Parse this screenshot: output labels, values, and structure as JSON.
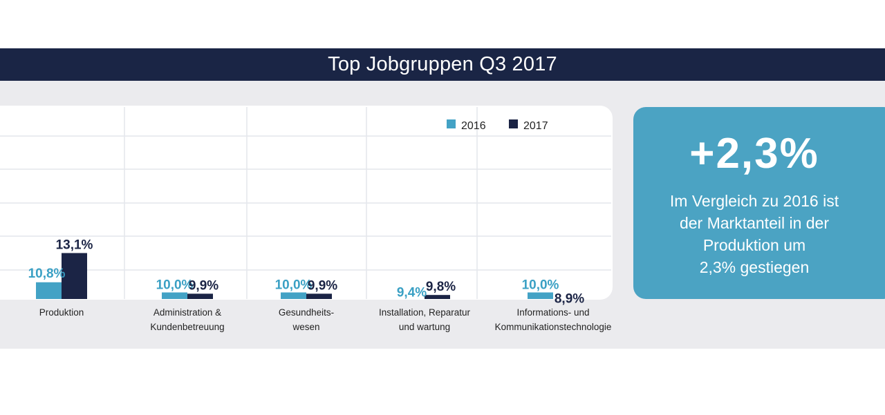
{
  "title": "Top Jobgruppen Q3 2017",
  "colors": {
    "2016": "#43a2c5",
    "2017": "#1b2445",
    "label_2016": "#3aa0c4",
    "label_2017": "#1b2445",
    "header": "#1a2545",
    "highlight": "#4ba3c3"
  },
  "chart_data": {
    "type": "bar",
    "categories": [
      [
        "Produktion"
      ],
      [
        "Administration &",
        "Kundenbetreuung"
      ],
      [
        "Gesundheits-",
        "wesen"
      ],
      [
        "Installation, Reparatur",
        "und wartung"
      ],
      [
        "Informations- und",
        "Kommunikationstechnologie"
      ]
    ],
    "series": [
      {
        "name": "2016",
        "values": [
          10.8,
          10.0,
          10.0,
          9.4,
          10.0
        ],
        "labels": [
          "10,8%",
          "10,0%",
          "10,0%",
          "9,4%",
          "10,0%"
        ]
      },
      {
        "name": "2017",
        "values": [
          13.1,
          9.9,
          9.9,
          9.8,
          8.9
        ],
        "labels": [
          "13,1%",
          "9,9%",
          "9,9%",
          "9,8%",
          "8,9%"
        ]
      }
    ],
    "legend_position": "top-right",
    "grid": true
  },
  "highlight": {
    "value": "+2,3%",
    "text": "Im Vergleich zu 2016 ist\nder Marktanteil in der\nProduktion um\n2,3% gestiegen"
  }
}
